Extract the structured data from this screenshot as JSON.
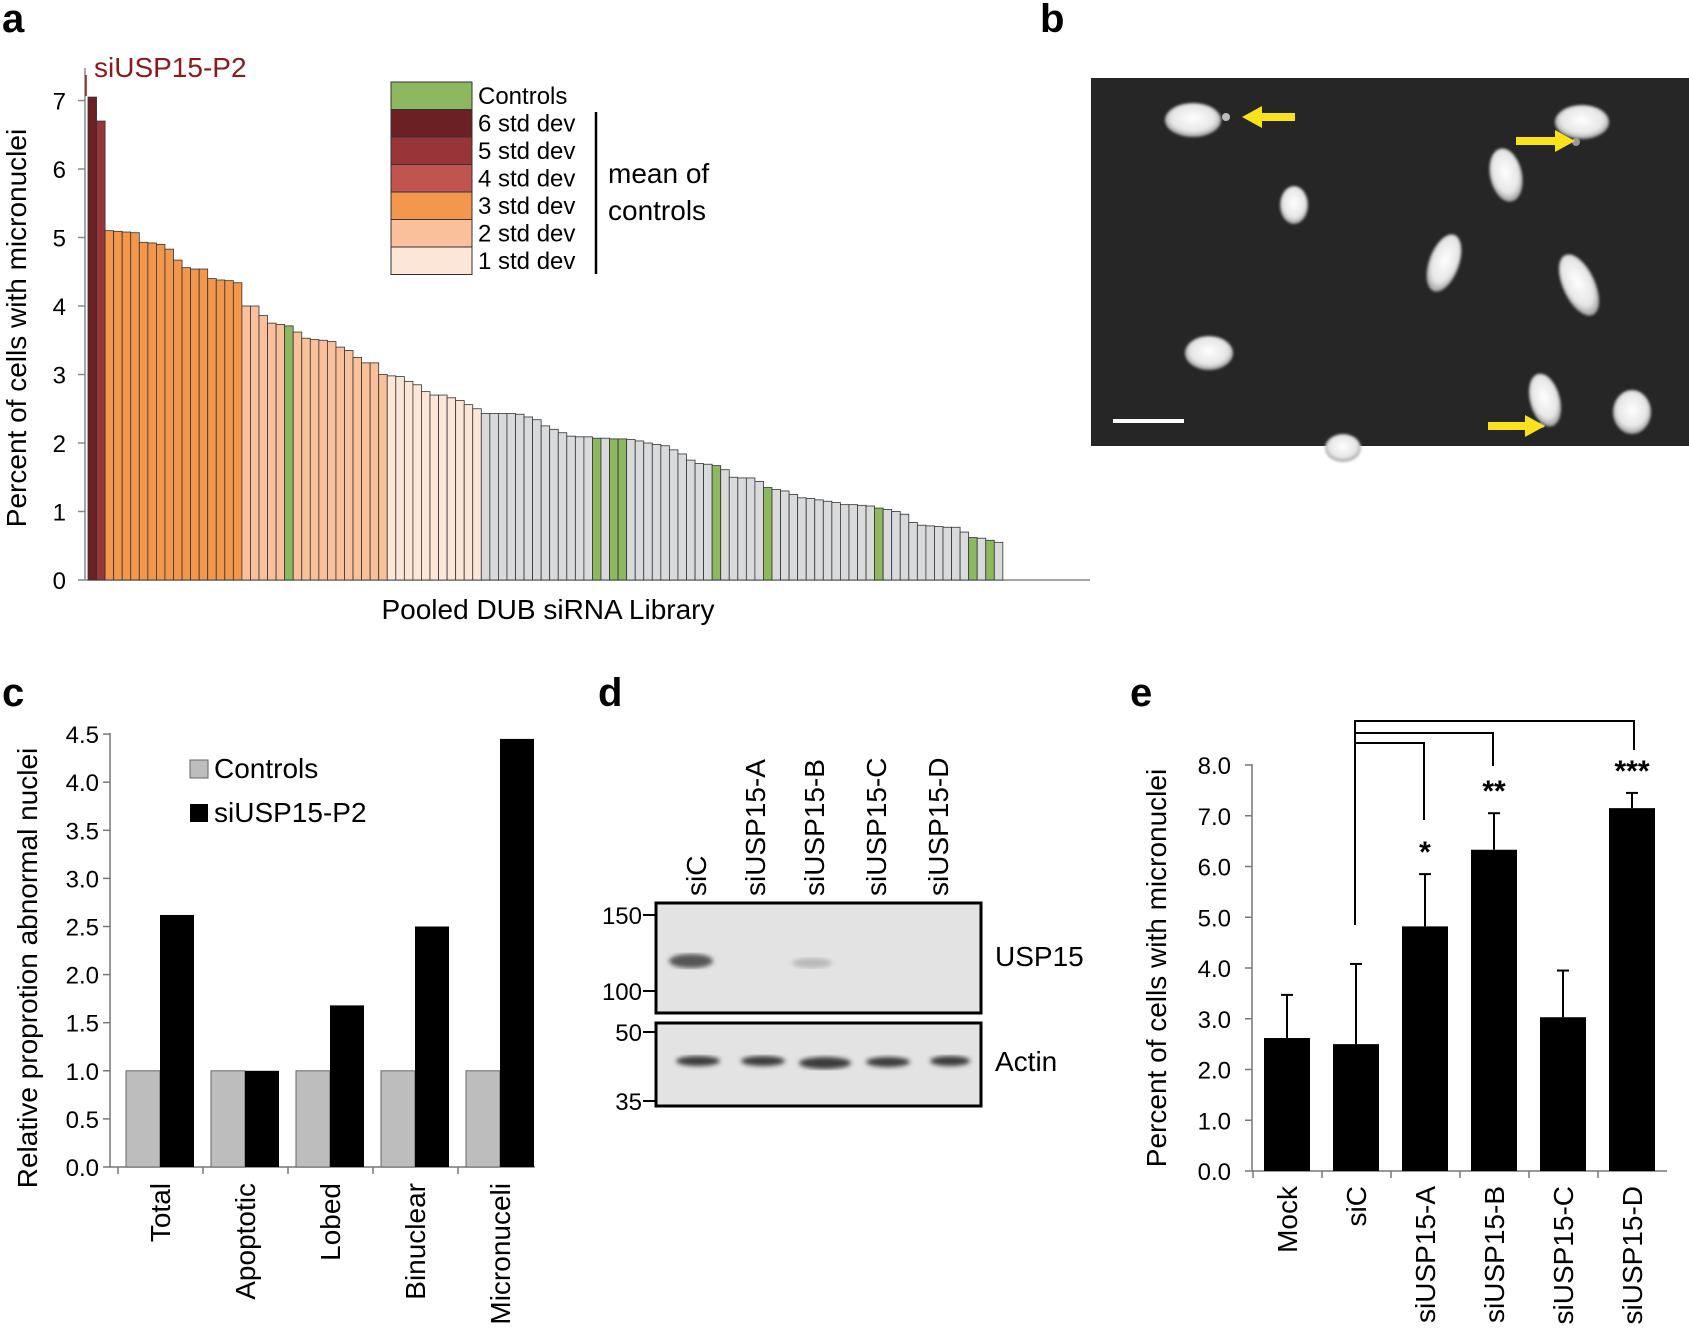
{
  "panel_letters": {
    "a": "a",
    "b": "b",
    "c": "c",
    "d": "d",
    "e": "e"
  },
  "colors": {
    "controls": "#8db860",
    "sd6": "#6b2024",
    "sd5": "#993538",
    "sd4": "#c2544f",
    "sd3": "#f2974b",
    "sd2": "#f9c09b",
    "sd1": "#fbe6d8",
    "other": "#d9dadb",
    "bar_gray": "#bdbdbd",
    "bar_black": "#000000",
    "arrow": "#f7e21b",
    "annot": "#8b1a1a",
    "blot_bg": "#e3e3e3",
    "micro_bg": "#262626"
  },
  "panel_a": {
    "annotation": "siUSP15-P2",
    "xlabel": "Pooled DUB siRNA Library",
    "ylabel": "Percent of cells with micronuclei",
    "yticks": [
      "0",
      "1",
      "2",
      "3",
      "4",
      "5",
      "6",
      "7"
    ],
    "legend": [
      {
        "label": "Controls",
        "color": "controls"
      },
      {
        "label": "6 std dev",
        "color": "sd6"
      },
      {
        "label": "5 std dev",
        "color": "sd5"
      },
      {
        "label": "4 std dev",
        "color": "sd4"
      },
      {
        "label": "3 std dev",
        "color": "sd3"
      },
      {
        "label": "2 std dev",
        "color": "sd2"
      },
      {
        "label": "1 std dev",
        "color": "sd1"
      }
    ],
    "legend_note_1": "mean of",
    "legend_note_2": "controls"
  },
  "chart_data": [
    {
      "panel": "a",
      "type": "bar",
      "ylim": [
        0,
        7
      ],
      "bar_count": 107,
      "values": [
        7.05,
        6.7,
        5.1,
        5.09,
        5.08,
        5.07,
        4.93,
        4.92,
        4.9,
        4.83,
        4.67,
        4.56,
        4.54,
        4.54,
        4.4,
        4.38,
        4.37,
        4.34,
        4.0,
        4.0,
        3.86,
        3.75,
        3.73,
        3.71,
        3.62,
        3.53,
        3.51,
        3.5,
        3.48,
        3.4,
        3.35,
        3.25,
        3.17,
        3.17,
        3.0,
        2.98,
        2.97,
        2.9,
        2.85,
        2.75,
        2.7,
        2.7,
        2.66,
        2.62,
        2.56,
        2.5,
        2.43,
        2.43,
        2.43,
        2.43,
        2.42,
        2.38,
        2.34,
        2.25,
        2.2,
        2.15,
        2.1,
        2.09,
        2.09,
        2.07,
        2.07,
        2.06,
        2.06,
        2.05,
        2.03,
        2.0,
        1.98,
        1.96,
        1.9,
        1.84,
        1.75,
        1.7,
        1.69,
        1.67,
        1.61,
        1.5,
        1.49,
        1.49,
        1.44,
        1.35,
        1.32,
        1.3,
        1.25,
        1.2,
        1.19,
        1.17,
        1.15,
        1.13,
        1.1,
        1.1,
        1.09,
        1.08,
        1.05,
        1.03,
        1.0,
        0.96,
        0.84,
        0.8,
        0.79,
        0.78,
        0.77,
        0.77,
        0.7,
        0.62,
        0.61,
        0.58,
        0.55
      ],
      "categories_color": [
        "sd6",
        "sd5",
        "sd3",
        "sd3",
        "sd3",
        "sd3",
        "sd3",
        "sd3",
        "sd3",
        "sd3",
        "sd3",
        "sd3",
        "sd3",
        "sd3",
        "sd3",
        "sd3",
        "sd3",
        "sd3",
        "sd2",
        "sd2",
        "sd2",
        "sd2",
        "sd2",
        "controls",
        "sd2",
        "sd2",
        "sd2",
        "sd2",
        "sd2",
        "sd2",
        "sd2",
        "sd2",
        "sd2",
        "sd2",
        "sd2",
        "sd1",
        "sd1",
        "sd1",
        "sd1",
        "sd1",
        "sd1",
        "sd1",
        "sd1",
        "sd1",
        "sd1",
        "sd1",
        "other",
        "other",
        "other",
        "other",
        "other",
        "other",
        "other",
        "other",
        "other",
        "other",
        "other",
        "other",
        "other",
        "controls",
        "other",
        "controls",
        "controls",
        "other",
        "other",
        "other",
        "other",
        "other",
        "other",
        "other",
        "other",
        "other",
        "other",
        "controls",
        "other",
        "other",
        "other",
        "other",
        "other",
        "controls",
        "other",
        "other",
        "other",
        "other",
        "other",
        "other",
        "other",
        "other",
        "other",
        "other",
        "other",
        "other",
        "controls",
        "other",
        "other",
        "other",
        "other",
        "other",
        "other",
        "other",
        "other",
        "other",
        "other",
        "controls",
        "other",
        "controls",
        "other"
      ]
    },
    {
      "panel": "c",
      "type": "bar",
      "ylabel": "Relative proprotion abnormal nuclei",
      "ylim": [
        0,
        4.5
      ],
      "yticks": [
        "0.0",
        "0.5",
        "1.0",
        "1.5",
        "2.0",
        "2.5",
        "3.0",
        "3.5",
        "4.0",
        "4.5"
      ],
      "categories": [
        "Total",
        "Apoptotic",
        "Lobed",
        "Binuclear",
        "Micronuceli"
      ],
      "series": [
        {
          "name": "Controls",
          "values": [
            1.0,
            1.0,
            1.0,
            1.0,
            1.0
          ]
        },
        {
          "name": "siUSP15-P2",
          "values": [
            2.62,
            1.0,
            1.68,
            2.5,
            4.45
          ]
        }
      ]
    },
    {
      "panel": "e",
      "type": "bar",
      "ylabel": "Percent of cells with micronuclei",
      "ylim": [
        0,
        8
      ],
      "yticks": [
        "0.0",
        "1.0",
        "2.0",
        "3.0",
        "4.0",
        "5.0",
        "6.0",
        "7.0",
        "8.0"
      ],
      "categories": [
        "Mock",
        "siC",
        "siUSP15-A",
        "siUSP15-B",
        "siUSP15-C",
        "siUSP15-D"
      ],
      "values": [
        2.62,
        2.5,
        4.82,
        6.33,
        3.03,
        7.15
      ],
      "errors": [
        0.85,
        1.58,
        1.03,
        0.72,
        0.92,
        0.3
      ],
      "significance": [
        "",
        "",
        "*",
        "**",
        "",
        "***"
      ]
    }
  ],
  "panel_d": {
    "lanes": [
      "siC",
      "siUSP15-A",
      "siUSP15-B",
      "siUSP15-C",
      "siUSP15-D"
    ],
    "top_markers": [
      "150",
      "100"
    ],
    "bottom_markers": [
      "50",
      "35"
    ],
    "top_label": "USP15",
    "bottom_label": "Actin"
  }
}
